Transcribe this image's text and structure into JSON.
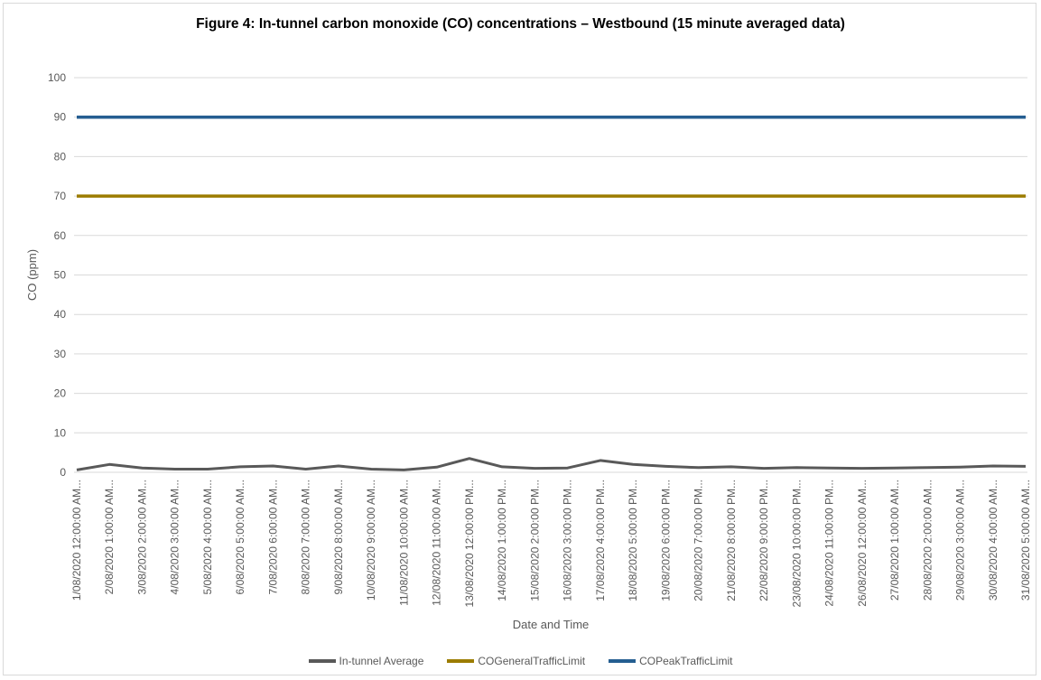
{
  "chart_data": {
    "type": "line",
    "title": "Figure 4: In-tunnel carbon monoxide (CO) concentrations – Westbound (15 minute averaged data)",
    "xlabel": "Date and Time",
    "ylabel": "CO (ppm)",
    "ylim": [
      0,
      100
    ],
    "yticks": [
      "0",
      "10",
      "20",
      "30",
      "40",
      "50",
      "60",
      "70",
      "80",
      "90",
      "100"
    ],
    "grid": true,
    "legend_position": "bottom",
    "categories": [
      "1/08/2020 12:00:00 AM",
      "2/08/2020 1:00:00 AM",
      "3/08/2020 2:00:00 AM",
      "4/08/2020 3:00:00 AM",
      "5/08/2020 4:00:00 AM",
      "6/08/2020 5:00:00 AM",
      "7/08/2020 6:00:00 AM",
      "8/08/2020 7:00:00 AM",
      "9/08/2020 8:00:00 AM",
      "10/08/2020 9:00:00 AM",
      "11/08/2020 10:00:00 AM",
      "12/08/2020 11:00:00 AM",
      "13/08/2020 12:00:00 PM",
      "14/08/2020 1:00:00 PM",
      "15/08/2020 2:00:00 PM",
      "16/08/2020 3:00:00 PM",
      "17/08/2020 4:00:00 PM",
      "18/08/2020 5:00:00 PM",
      "19/08/2020 6:00:00 PM",
      "20/08/2020 7:00:00 PM",
      "21/08/2020 8:00:00 PM",
      "22/08/2020 9:00:00 PM",
      "23/08/2020 10:00:00 PM",
      "24/08/2020 11:00:00 PM",
      "26/08/2020 12:00:00 AM",
      "27/08/2020 1:00:00 AM",
      "28/08/2020 2:00:00 AM",
      "29/08/2020 3:00:00 AM",
      "30/08/2020 4:00:00 AM",
      "31/08/2020 5:00:00 AM"
    ],
    "tick_labels": [
      "1/08/2020 12:00:00 AM...",
      "2/08/2020 1:00:00 AM...",
      "3/08/2020 2:00:00 AM...",
      "4/08/2020 3:00:00 AM...",
      "5/08/2020 4:00:00 AM...",
      "6/08/2020 5:00:00 AM...",
      "7/08/2020 6:00:00 AM...",
      "8/08/2020 7:00:00 AM...",
      "9/08/2020 8:00:00 AM...",
      "10/08/2020 9:00:00 AM...",
      "11/08/2020 10:00:00 AM...",
      "12/08/2020 11:00:00 AM...",
      "13/08/2020 12:00:00 PM...",
      "14/08/2020 1:00:00 PM...",
      "15/08/2020 2:00:00 PM...",
      "16/08/2020 3:00:00 PM...",
      "17/08/2020 4:00:00 PM...",
      "18/08/2020 5:00:00 PM...",
      "19/08/2020 6:00:00 PM...",
      "20/08/2020 7:00:00 PM...",
      "21/08/2020 8:00:00 PM...",
      "22/08/2020 9:00:00 PM...",
      "23/08/2020 10:00:00 PM...",
      "24/08/2020 11:00:00 PM...",
      "26/08/2020 12:00:00 AM...",
      "27/08/2020 1:00:00 AM...",
      "28/08/2020 2:00:00 AM...",
      "29/08/2020 3:00:00 AM...",
      "30/08/2020 4:00:00 AM...",
      "31/08/2020 5:00:00 AM..."
    ],
    "series": [
      {
        "name": "In-tunnel Average",
        "color": "#595959",
        "values": [
          0.6,
          2.0,
          1.1,
          0.8,
          0.8,
          1.4,
          1.6,
          0.8,
          1.6,
          0.8,
          0.6,
          1.3,
          3.5,
          1.4,
          1.0,
          1.1,
          3.0,
          2.0,
          1.5,
          1.2,
          1.4,
          1.0,
          1.2,
          1.1,
          1.0,
          1.1,
          1.2,
          1.3,
          1.6,
          1.5
        ]
      },
      {
        "name": "COGeneralTrafficLimit",
        "color": "#9c7c00",
        "values": [
          70,
          70,
          70,
          70,
          70,
          70,
          70,
          70,
          70,
          70,
          70,
          70,
          70,
          70,
          70,
          70,
          70,
          70,
          70,
          70,
          70,
          70,
          70,
          70,
          70,
          70,
          70,
          70,
          70,
          70
        ]
      },
      {
        "name": "COPeakTrafficLimit",
        "color": "#255e91",
        "values": [
          90,
          90,
          90,
          90,
          90,
          90,
          90,
          90,
          90,
          90,
          90,
          90,
          90,
          90,
          90,
          90,
          90,
          90,
          90,
          90,
          90,
          90,
          90,
          90,
          90,
          90,
          90,
          90,
          90,
          90
        ]
      }
    ]
  }
}
